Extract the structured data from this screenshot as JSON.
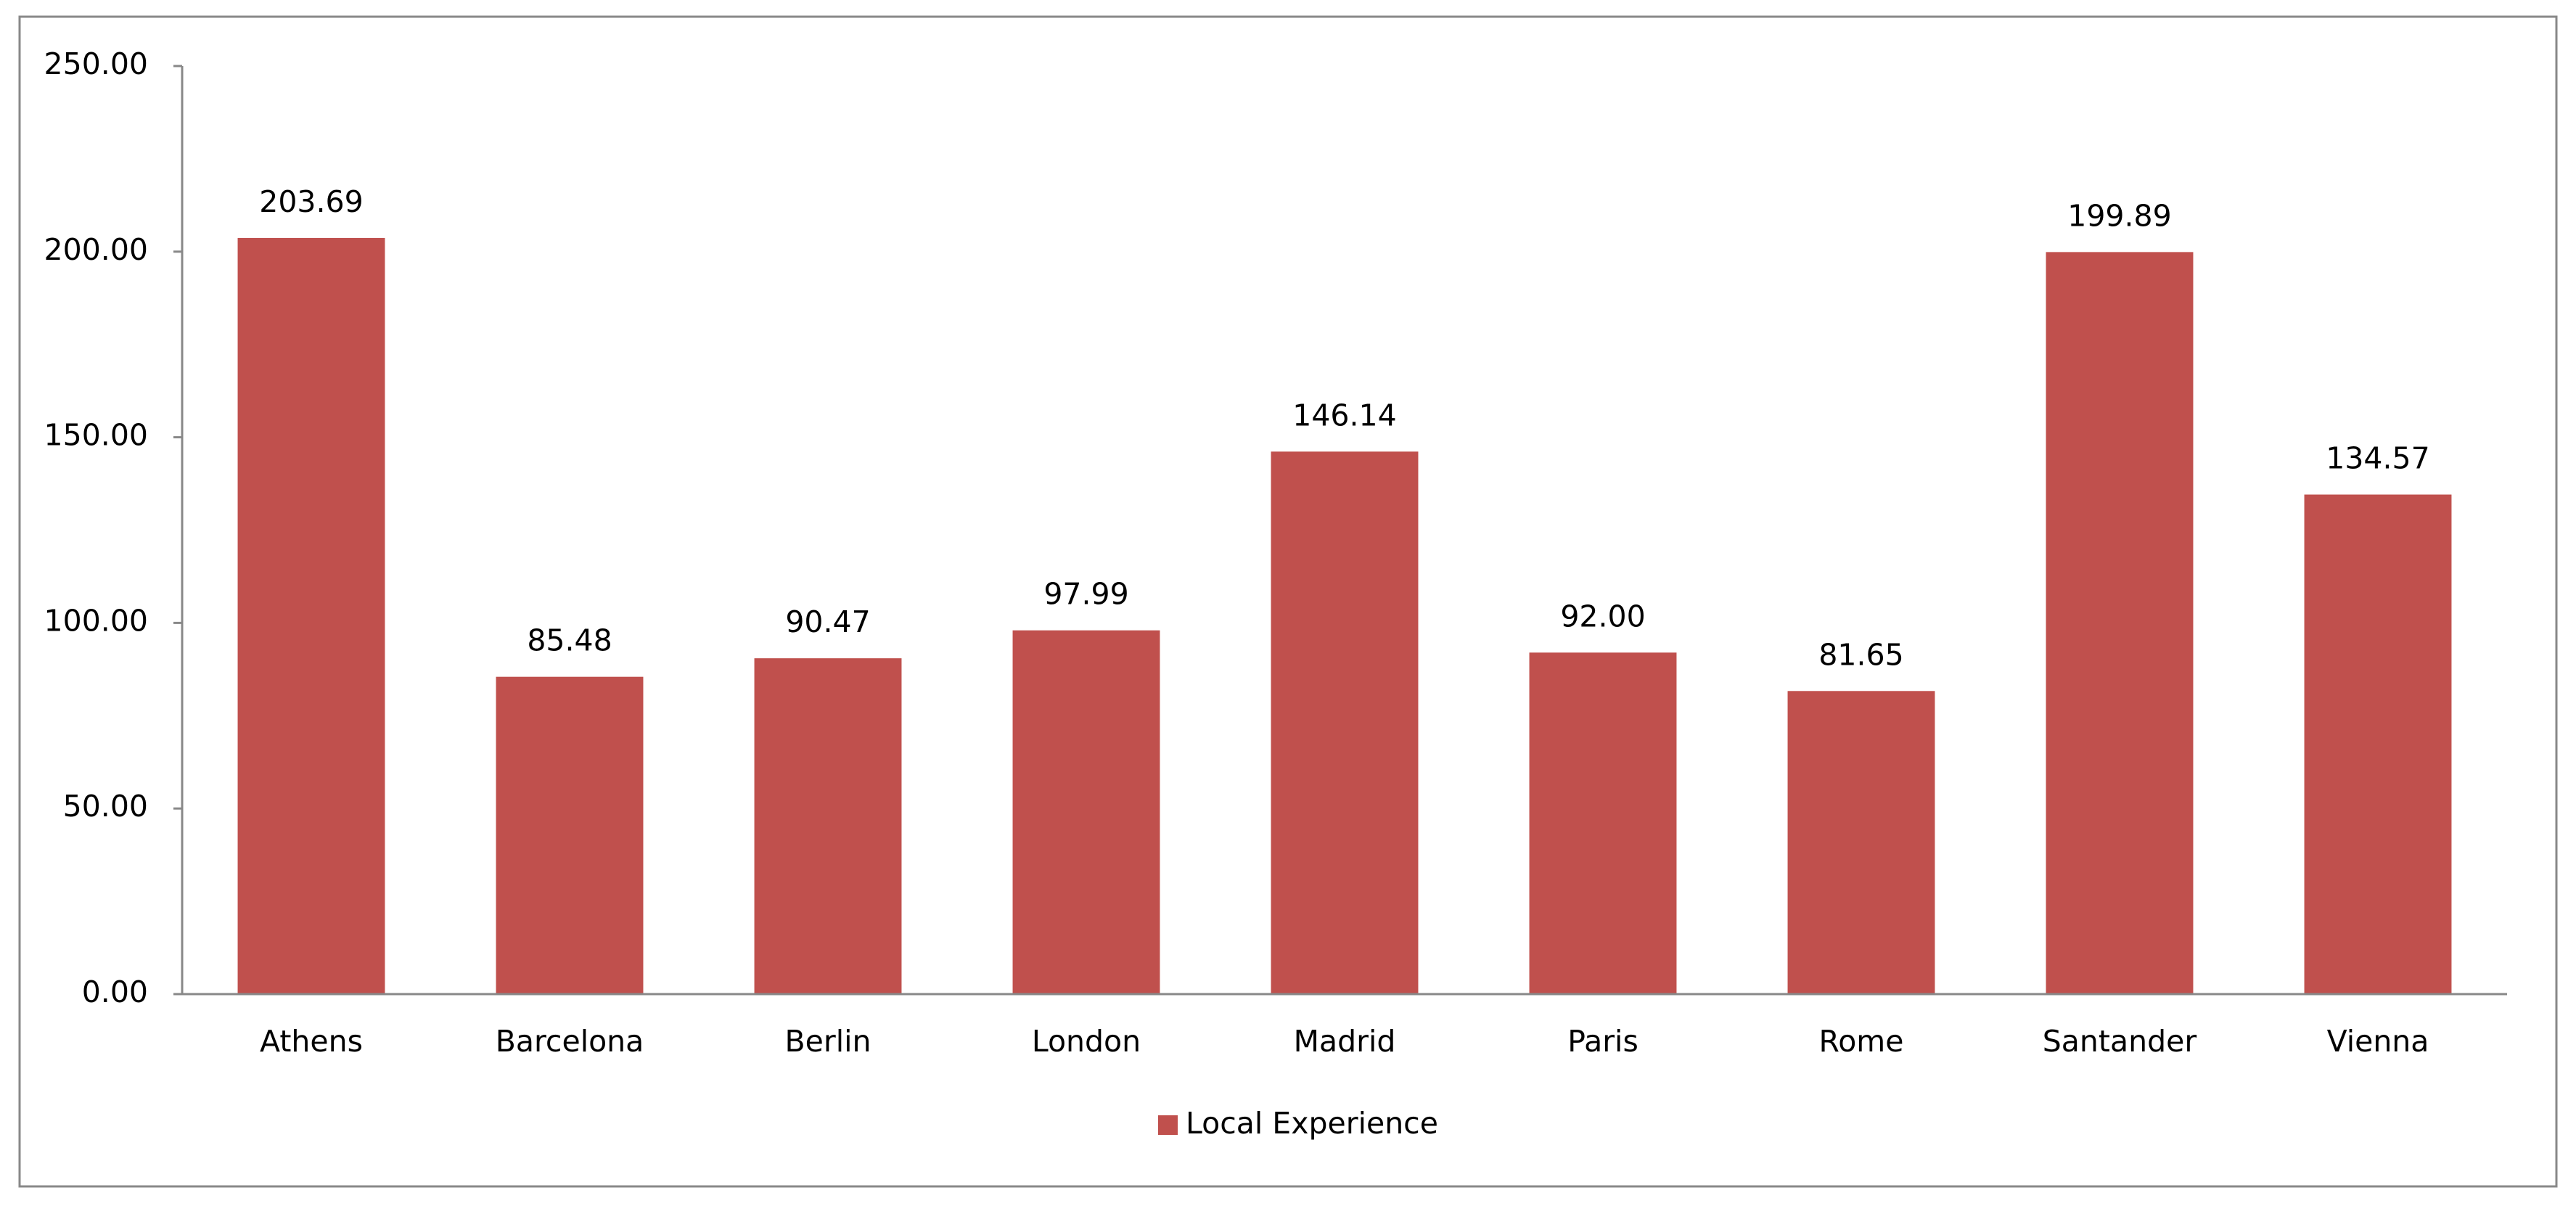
{
  "chart_data": {
    "type": "bar",
    "categories": [
      "Athens",
      "Barcelona",
      "Berlin",
      "London",
      "Madrid",
      "Paris",
      "Rome",
      "Santander",
      "Vienna"
    ],
    "series": [
      {
        "name": "Local Experience",
        "color": "#c0504d",
        "values": [
          203.69,
          85.48,
          90.47,
          97.99,
          146.14,
          92.0,
          81.65,
          199.89,
          134.57
        ],
        "value_labels": [
          "203.69",
          "85.48",
          "90.47",
          "97.99",
          "146.14",
          "92.00",
          "81.65",
          "199.89",
          "134.57"
        ]
      }
    ],
    "ylim": [
      0,
      250
    ],
    "yticks": [
      {
        "value": 0,
        "label": "0.00"
      },
      {
        "value": 50,
        "label": "50.00"
      },
      {
        "value": 100,
        "label": "100.00"
      },
      {
        "value": 150,
        "label": "150.00"
      },
      {
        "value": 200,
        "label": "200.00"
      },
      {
        "value": 250,
        "label": "250.00"
      }
    ],
    "grid": false,
    "legend": "bottom"
  }
}
